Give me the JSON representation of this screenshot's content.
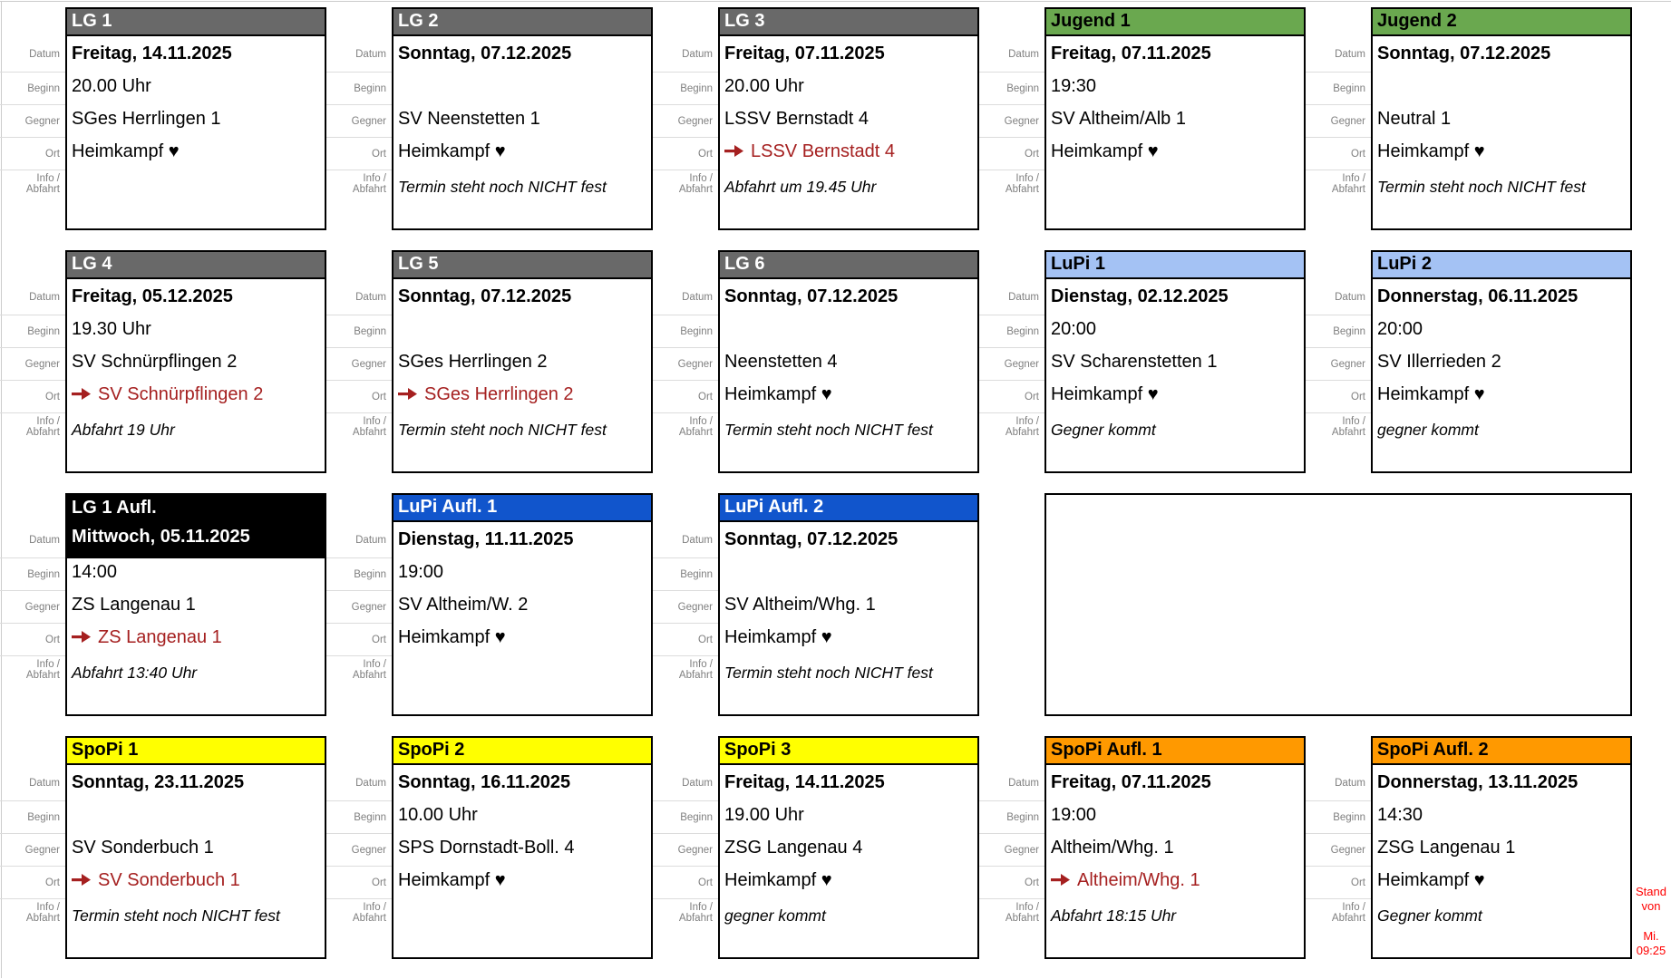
{
  "labels": {
    "datum": "Datum",
    "beginn": "Beginn",
    "gegner": "Gegner",
    "ort": "Ort",
    "info_line1": "Info /",
    "info_line2": "Abfahrt"
  },
  "colors": {
    "away_red": "#a52020",
    "stamp_red": "#ff0000",
    "label_gray": "#7f7f7f",
    "card_border": "#000000"
  },
  "header_styles": {
    "gray": {
      "bg": "#696969",
      "fg": "#ffffff"
    },
    "green": {
      "bg": "#6aa84f",
      "fg": "#000000"
    },
    "lightblue": {
      "bg": "#a4c2f4",
      "fg": "#000000"
    },
    "blue": {
      "bg": "#1155cc",
      "fg": "#ffffff"
    },
    "black": {
      "bg": "#000000",
      "fg": "#ffffff"
    },
    "yellow": {
      "bg": "#ffff00",
      "fg": "#000000"
    },
    "orange": {
      "bg": "#ff9900",
      "fg": "#000000"
    }
  },
  "stamp": {
    "stand_von": "Stand von",
    "day": "Mi.",
    "time": "09:25"
  },
  "rows": [
    [
      {
        "title": "LG 1",
        "style": "gray",
        "datum": "Freitag, 14.11.2025",
        "beginn": "20.00 Uhr",
        "gegner": "SGes Herrlingen 1",
        "ort": "Heimkampf ♥",
        "away": false,
        "info": ""
      },
      {
        "title": "LG 2",
        "style": "gray",
        "datum": "Sonntag, 07.12.2025",
        "beginn": "",
        "gegner": "SV Neenstetten 1",
        "ort": "Heimkampf ♥",
        "away": false,
        "info": "Termin steht noch NICHT fest"
      },
      {
        "title": "LG 3",
        "style": "gray",
        "datum": "Freitag, 07.11.2025",
        "beginn": "20.00 Uhr",
        "gegner": "LSSV Bernstadt 4",
        "ort": "LSSV Bernstadt 4",
        "away": true,
        "info": "Abfahrt um 19.45 Uhr"
      },
      {
        "title": "Jugend 1",
        "style": "green",
        "datum": "Freitag, 07.11.2025",
        "beginn": "19:30",
        "gegner": "SV Altheim/Alb 1",
        "ort": "Heimkampf ♥",
        "away": false,
        "info": ""
      },
      {
        "title": "Jugend 2",
        "style": "green",
        "datum": "Sonntag, 07.12.2025",
        "beginn": "",
        "gegner": "Neutral 1",
        "ort": "Heimkampf ♥",
        "away": false,
        "info": "Termin steht noch NICHT fest"
      }
    ],
    [
      {
        "title": "LG 4",
        "style": "gray",
        "datum": "Freitag, 05.12.2025",
        "beginn": "19.30 Uhr",
        "gegner": "SV Schnürpflingen 2",
        "ort": "SV Schnürpflingen 2",
        "away": true,
        "info": "Abfahrt 19 Uhr"
      },
      {
        "title": "LG 5",
        "style": "gray",
        "datum": "Sonntag, 07.12.2025",
        "beginn": "",
        "gegner": "SGes Herrlingen 2",
        "ort": "SGes Herrlingen 2",
        "away": true,
        "info": "Termin steht noch NICHT fest"
      },
      {
        "title": "LG 6",
        "style": "gray",
        "datum": "Sonntag, 07.12.2025",
        "beginn": "",
        "gegner": "Neenstetten 4",
        "ort": "Heimkampf ♥",
        "away": false,
        "info": "Termin steht noch NICHT fest"
      },
      {
        "title": "LuPi 1",
        "style": "lightblue",
        "datum": "Dienstag, 02.12.2025",
        "beginn": "20:00",
        "gegner": "SV Scharenstetten 1",
        "ort": "Heimkampf ♥",
        "away": false,
        "info": "Gegner kommt"
      },
      {
        "title": "LuPi 2",
        "style": "lightblue",
        "datum": "Donnerstag, 06.11.2025",
        "beginn": "20:00",
        "gegner": "SV Illerrieden 2",
        "ort": "Heimkampf ♥",
        "away": false,
        "info": "gegner kommt"
      }
    ],
    [
      {
        "title": "LG 1 Aufl.",
        "style": "black",
        "datum": "Mittwoch, 05.11.2025",
        "beginn": "14:00",
        "gegner": "ZS Langenau 1",
        "ort": "ZS Langenau 1",
        "away": true,
        "info": "Abfahrt 13:40 Uhr"
      },
      {
        "title": "LuPi Aufl. 1",
        "style": "blue",
        "datum": "Dienstag, 11.11.2025",
        "beginn": "19:00",
        "gegner": "SV Altheim/W. 2",
        "ort": "Heimkampf ♥",
        "away": false,
        "info": ""
      },
      {
        "title": "LuPi Aufl. 2",
        "style": "blue",
        "datum": "Sonntag, 07.12.2025",
        "beginn": "",
        "gegner": "SV Altheim/Whg. 1",
        "ort": "Heimkampf ♥",
        "away": false,
        "info": "Termin steht noch NICHT fest"
      },
      {
        "empty": true
      }
    ],
    [
      {
        "title": "SpoPi 1",
        "style": "yellow",
        "datum": "Sonntag, 23.11.2025",
        "beginn": "",
        "gegner": "SV Sonderbuch 1",
        "ort": "SV Sonderbuch 1",
        "away": true,
        "info": "Termin steht noch NICHT fest"
      },
      {
        "title": "SpoPi 2",
        "style": "yellow",
        "datum": "Sonntag, 16.11.2025",
        "beginn": "10.00 Uhr",
        "gegner": "SPS Dornstadt-Boll. 4",
        "ort": "Heimkampf ♥",
        "away": false,
        "info": ""
      },
      {
        "title": "SpoPi 3",
        "style": "yellow",
        "datum": "Freitag, 14.11.2025",
        "beginn": "19.00 Uhr",
        "gegner": "ZSG Langenau 4",
        "ort": "Heimkampf ♥",
        "away": false,
        "info": "gegner kommt"
      },
      {
        "title": "SpoPi Aufl. 1",
        "style": "orange",
        "datum": "Freitag, 07.11.2025",
        "beginn": "19:00",
        "gegner": "Altheim/Whg. 1",
        "ort": "Altheim/Whg. 1",
        "away": true,
        "info": "Abfahrt 18:15 Uhr"
      },
      {
        "title": "SpoPi Aufl. 2",
        "style": "orange",
        "datum": "Donnerstag, 13.11.2025",
        "beginn": "14:30",
        "gegner": "ZSG Langenau 1",
        "ort": "Heimkampf ♥",
        "away": false,
        "info": "Gegner kommt"
      }
    ]
  ]
}
